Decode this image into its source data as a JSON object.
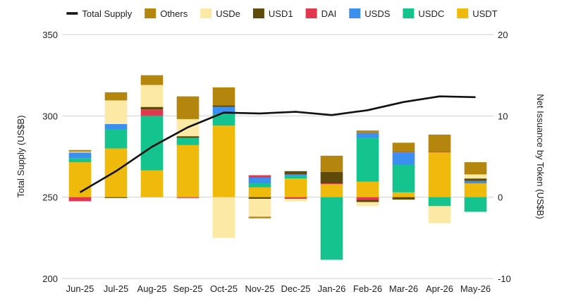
{
  "chart_data": {
    "type": "bar",
    "subtype": "stacked-bar-with-line",
    "categories": [
      "Jun-25",
      "Jul-25",
      "Aug-25",
      "Sep-25",
      "Oct-25",
      "Nov-25",
      "Dec-25",
      "Jan-26",
      "Feb-26",
      "Mar-26",
      "Apr-26",
      "May-26"
    ],
    "y_left": {
      "label": "Total Supply (US$B)",
      "range": [
        200,
        350
      ],
      "ticks": [
        200,
        250,
        300,
        350
      ]
    },
    "y_right": {
      "label": "Net Issuance by Token (US$B)",
      "range": [
        -10,
        20
      ],
      "ticks": [
        -10,
        0,
        10,
        20
      ]
    },
    "grid": true,
    "legend_position": "top",
    "legend_order": [
      "Total Supply",
      "Others",
      "USDe",
      "USD1",
      "DAI",
      "USDS",
      "USDC",
      "USDT"
    ],
    "line": {
      "name": "Total Supply",
      "color": "#111111",
      "axis": "left",
      "values": [
        253,
        266,
        281,
        293,
        302,
        301.5,
        302.5,
        300.5,
        303.5,
        308.5,
        312,
        311.5
      ]
    },
    "series": [
      {
        "name": "USDT",
        "color": "#F0BA0C",
        "values": [
          4.3,
          6.0,
          3.3,
          6.4,
          8.8,
          1.2,
          2.3,
          1.6,
          1.9,
          0.6,
          5.5,
          1.7
        ]
      },
      {
        "name": "USDC",
        "color": "#14C38E",
        "values": [
          0.5,
          2.3,
          6.7,
          0.9,
          1.4,
          0.5,
          0.3,
          -7.7,
          5.4,
          3.4,
          -1.1,
          -1.8
        ]
      },
      {
        "name": "USDS",
        "color": "#3A8FF0",
        "values": [
          0.7,
          0.7,
          0.0,
          0.0,
          0.9,
          0.7,
          0.2,
          0.0,
          0.6,
          1.5,
          0.0,
          0.3
        ]
      },
      {
        "name": "DAI",
        "color": "#E0384F",
        "values": [
          -0.5,
          0.0,
          0.8,
          -0.1,
          0.0,
          0.3,
          -0.2,
          0.1,
          -0.3,
          0.1,
          0.1,
          0.0
        ]
      },
      {
        "name": "USD1",
        "color": "#5E4A0A",
        "values": [
          0.0,
          -0.1,
          0.3,
          0.2,
          0.2,
          -0.2,
          0.4,
          1.4,
          -0.3,
          -0.3,
          0.0,
          0.3
        ]
      },
      {
        "name": "USDe",
        "color": "#FCE9A6",
        "values": [
          0.1,
          2.9,
          2.7,
          2.1,
          -5.0,
          -2.2,
          -0.3,
          0.0,
          -0.5,
          0.0,
          -2.1,
          0.5
        ]
      },
      {
        "name": "Others",
        "color": "#B5860D",
        "values": [
          0.2,
          1.0,
          1.2,
          2.8,
          2.2,
          -0.2,
          0.0,
          2.0,
          0.3,
          1.1,
          2.1,
          1.5
        ]
      }
    ]
  }
}
